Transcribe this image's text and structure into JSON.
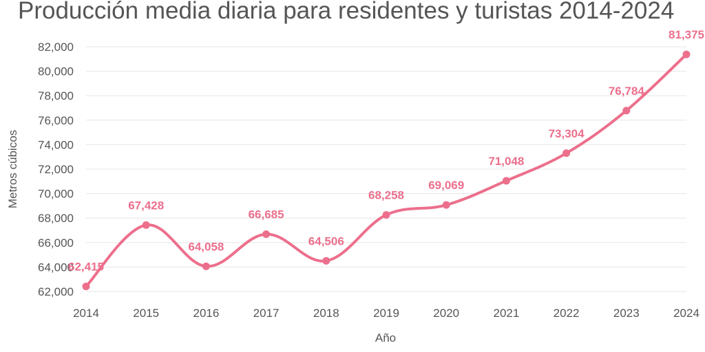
{
  "chart_data": {
    "type": "line",
    "title": "Producción media diaria para residentes y turistas 2014-2024",
    "xlabel": "Año",
    "ylabel": "Metros cúbicos",
    "categories": [
      "2014",
      "2015",
      "2016",
      "2017",
      "2018",
      "2019",
      "2020",
      "2021",
      "2022",
      "2023",
      "2024"
    ],
    "series": [
      {
        "values": [
          62415,
          67428,
          64058,
          66685,
          64506,
          68258,
          69069,
          71048,
          73304,
          76784,
          81375
        ],
        "labels": [
          "62,415",
          "67,428",
          "64,058",
          "66,685",
          "64,506",
          "68,258",
          "69,069",
          "71,048",
          "73,304",
          "76,784",
          "81,375"
        ]
      }
    ],
    "ylim": [
      62000,
      82000
    ],
    "yticks": [
      62000,
      64000,
      66000,
      68000,
      70000,
      72000,
      74000,
      76000,
      78000,
      80000,
      82000
    ],
    "ytick_labels": [
      "62,000",
      "64,000",
      "66,000",
      "68,000",
      "70,000",
      "72,000",
      "74,000",
      "76,000",
      "78,000",
      "80,000",
      "82,000"
    ],
    "grid": true,
    "line_style": "smooth",
    "colors": {
      "series": "#ec6f8c",
      "grid": "#e6e6e6",
      "text": "#555555"
    }
  }
}
